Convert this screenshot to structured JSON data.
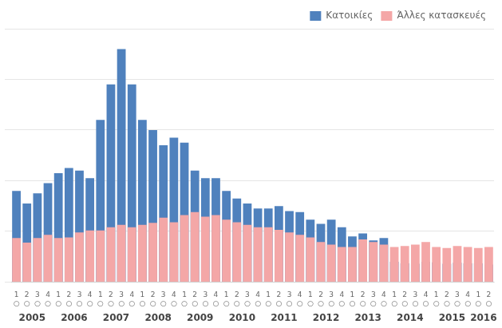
{
  "chart_data": {
    "type": "bar",
    "categories": [
      "1",
      "2",
      "3",
      "4",
      "1",
      "2",
      "3",
      "4",
      "1",
      "2",
      "3",
      "4",
      "1",
      "2",
      "3",
      "4",
      "1",
      "2",
      "3",
      "4",
      "1",
      "2",
      "3",
      "4",
      "1",
      "2",
      "3",
      "4",
      "1",
      "2",
      "3",
      "4",
      "1",
      "2",
      "3",
      "4",
      "1",
      "2",
      "3",
      "4",
      "1",
      "2",
      "3",
      "4",
      "1",
      "2"
    ],
    "category_sublabel": "○",
    "category_groups": [
      {
        "label": "2005",
        "size": 4
      },
      {
        "label": "2006",
        "size": 4
      },
      {
        "label": "2007",
        "size": 4
      },
      {
        "label": "2008",
        "size": 4
      },
      {
        "label": "2009",
        "size": 4
      },
      {
        "label": "2010",
        "size": 4
      },
      {
        "label": "2011",
        "size": 4
      },
      {
        "label": "2012",
        "size": 4
      },
      {
        "label": "2013",
        "size": 4
      },
      {
        "label": "2014",
        "size": 4
      },
      {
        "label": "2015",
        "size": 4
      },
      {
        "label": "2016",
        "size": 2
      }
    ],
    "series": [
      {
        "name": "Κατοικίες",
        "color": "#4f81bd",
        "values": [
          1800,
          1550,
          1750,
          1950,
          2150,
          2250,
          2200,
          2050,
          3200,
          3900,
          4600,
          3900,
          3200,
          3000,
          2700,
          2850,
          2750,
          2200,
          2050,
          2050,
          1800,
          1650,
          1550,
          1450,
          1450,
          1500,
          1400,
          1380,
          1230,
          1150,
          1230,
          1080,
          900,
          960,
          820,
          870,
          400,
          370,
          360,
          400,
          390,
          360,
          380,
          370,
          370,
          345
        ]
      },
      {
        "name": "Άλλες κατασκευές",
        "color": "#f4a7a7",
        "values": [
          870,
          780,
          870,
          930,
          870,
          880,
          980,
          1020,
          1020,
          1080,
          1130,
          1080,
          1130,
          1170,
          1270,
          1180,
          1320,
          1380,
          1290,
          1320,
          1230,
          1180,
          1130,
          1080,
          1080,
          1030,
          980,
          930,
          880,
          790,
          740,
          690,
          690,
          840,
          790,
          740,
          690,
          710,
          740,
          790,
          690,
          670,
          710,
          690,
          670,
          690
        ]
      }
    ],
    "ylim": [
      0,
      5000
    ],
    "yticks": [
      0,
      1000,
      2000,
      3000,
      4000,
      5000
    ],
    "grid": true,
    "legend": "upper right",
    "tick_labels": "x"
  }
}
